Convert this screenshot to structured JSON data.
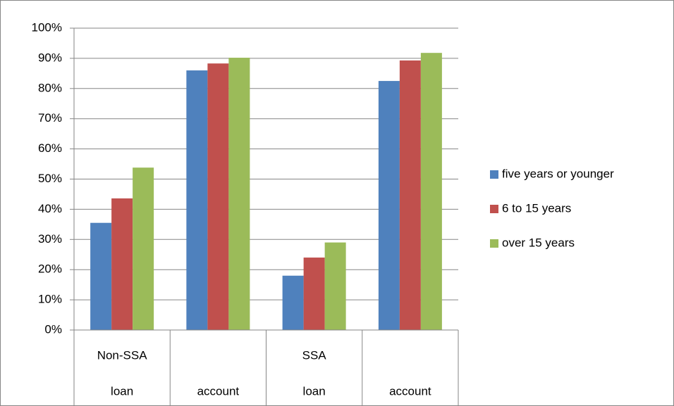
{
  "chart_data": {
    "type": "bar",
    "categories": [
      "loan",
      "account",
      "loan",
      "account"
    ],
    "category_groups": [
      "Non-SSA",
      "SSA"
    ],
    "series": [
      {
        "name": "five years or younger",
        "color": "#4f81bd",
        "values": [
          35.5,
          86,
          18,
          82.5
        ]
      },
      {
        "name": "6 to 15 years",
        "color": "#c0504d",
        "values": [
          43.6,
          88.3,
          24,
          89.3
        ]
      },
      {
        "name": "over 15 years",
        "color": "#9bbb59",
        "values": [
          53.8,
          90.2,
          29,
          91.8
        ]
      }
    ],
    "ylim": [
      0,
      100
    ],
    "yticks": [
      {
        "value": 0,
        "label": "0%"
      },
      {
        "value": 10,
        "label": "10%"
      },
      {
        "value": 20,
        "label": "20%"
      },
      {
        "value": 30,
        "label": "30%"
      },
      {
        "value": 40,
        "label": "40%"
      },
      {
        "value": 50,
        "label": "50%"
      },
      {
        "value": 60,
        "label": "60%"
      },
      {
        "value": 70,
        "label": "70%"
      },
      {
        "value": 80,
        "label": "80%"
      },
      {
        "value": 90,
        "label": "90%"
      },
      {
        "value": 100,
        "label": "100%"
      }
    ],
    "grid": true,
    "legend": "right"
  }
}
